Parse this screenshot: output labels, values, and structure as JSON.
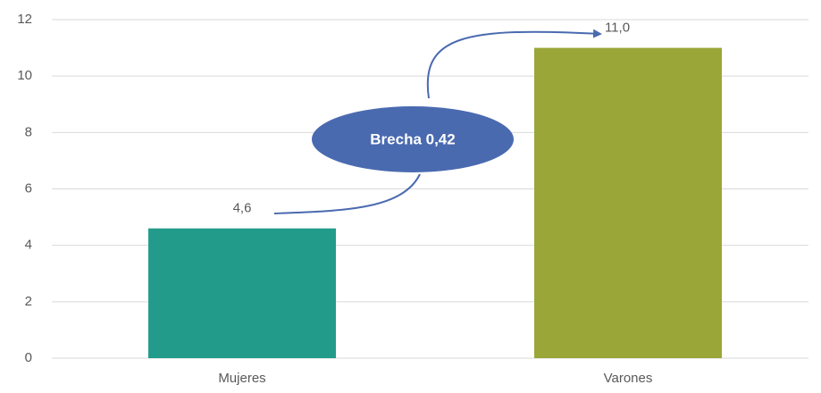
{
  "chart_data": {
    "type": "bar",
    "categories": [
      "Mujeres",
      "Varones"
    ],
    "values": [
      4.6,
      11.0
    ],
    "value_labels": [
      "4,6",
      "11,0"
    ],
    "colors": [
      "#229b8a",
      "#9aa637"
    ],
    "ylim": [
      0,
      12
    ],
    "yticks": [
      0,
      2,
      4,
      6,
      8,
      10,
      12
    ],
    "grid": true,
    "annotation": "Brecha 0,42",
    "annotation_color": "#4a6ab0"
  }
}
